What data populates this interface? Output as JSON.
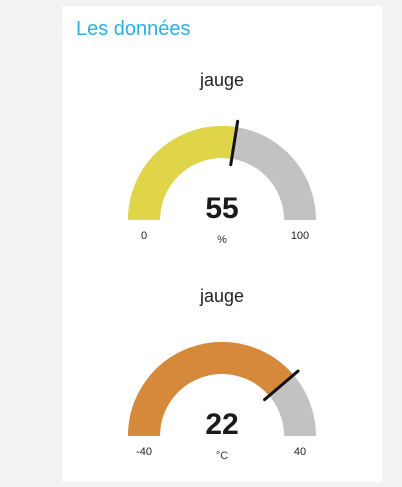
{
  "section": {
    "title": "Les données"
  },
  "gauges": [
    {
      "title": "jauge",
      "value": 55,
      "display": "55",
      "unit": "%",
      "min": -0.0,
      "max": 100,
      "min_label": "0",
      "max_label": "100",
      "fill_color": "#e0d448",
      "track_color": "#c2c2c2",
      "needle_color": "#111111"
    },
    {
      "title": "jauge",
      "value": 22,
      "display": "22",
      "unit": "°C",
      "min": -40,
      "max": 40,
      "min_label": "-40",
      "max_label": "40",
      "fill_color": "#d6893a",
      "track_color": "#c2c2c2",
      "needle_color": "#111111"
    }
  ]
}
